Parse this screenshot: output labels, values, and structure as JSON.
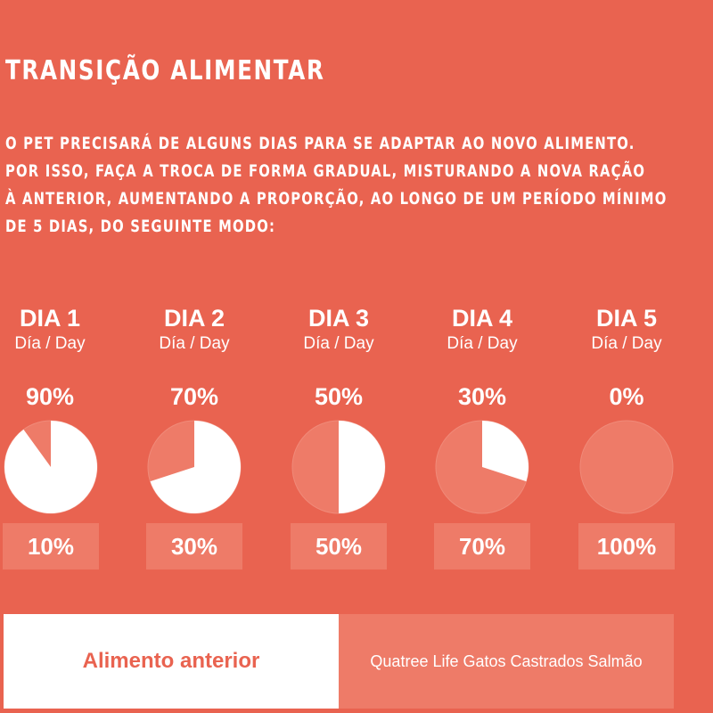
{
  "title": "TRANSIÇÃO ALIMENTAR",
  "intro_lines": [
    "O PET PRECISARÁ DE ALGUNS DIAS PARA SE ADAPTAR AO NOVO ALIMENTO.",
    "POR ISSO, FAÇA A TROCA DE FORMA GRADUAL, MISTURANDO A NOVA RAÇÃO",
    "À ANTERIOR, AUMENTANDO A PROPORÇÃO, AO LONGO DE UM PERÍODO MÍNIMO",
    "DE 5 DIAS, DO SEGUINTE MODO:"
  ],
  "colors": {
    "background": "#e96350",
    "previous_food": "#ffffff",
    "new_food": "#ee7b68"
  },
  "days": [
    {
      "label": "DIA 1",
      "sub": "Día / Day",
      "previous_pct": "90%",
      "new_pct": "10%",
      "previous_value": 90
    },
    {
      "label": "DIA 2",
      "sub": "Día / Day",
      "previous_pct": "70%",
      "new_pct": "30%",
      "previous_value": 70
    },
    {
      "label": "DIA 3",
      "sub": "Día / Day",
      "previous_pct": "50%",
      "new_pct": "50%",
      "previous_value": 50
    },
    {
      "label": "DIA 4",
      "sub": "Día / Day",
      "previous_pct": "30%",
      "new_pct": "70%",
      "previous_value": 30
    },
    {
      "label": "DIA 5",
      "sub": "Día / Day",
      "previous_pct": "0%",
      "new_pct": "100%",
      "previous_value": 0
    }
  ],
  "legend": {
    "previous_food": "Alimento anterior",
    "new_food": "Quatree Life Gatos Castrados Salmão"
  }
}
